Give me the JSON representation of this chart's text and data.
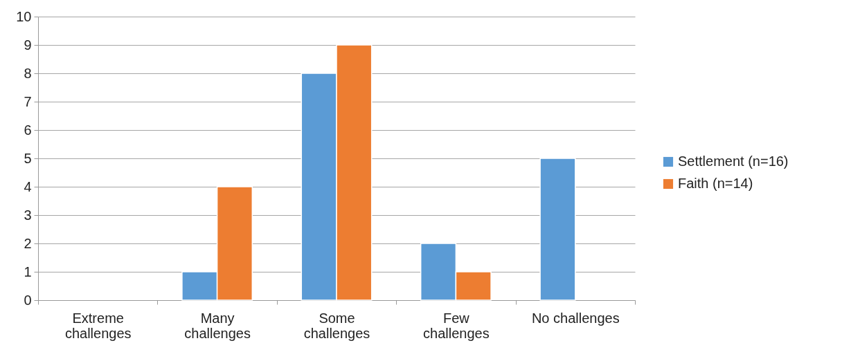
{
  "chart_data": {
    "type": "bar",
    "categories": [
      "Extreme challenges",
      "Many challenges",
      "Some challenges",
      "Few challenges",
      "No challenges"
    ],
    "series": [
      {
        "name": "Settlement (n=16)",
        "color": "#5b9bd5",
        "values": [
          0,
          1,
          8,
          2,
          5
        ]
      },
      {
        "name": "Faith (n=14)",
        "color": "#ed7d31",
        "values": [
          0,
          4,
          9,
          1,
          0
        ]
      }
    ],
    "ylim": [
      0,
      10
    ],
    "yticks": [
      0,
      1,
      2,
      3,
      4,
      5,
      6,
      7,
      8,
      9,
      10
    ],
    "grid": "y",
    "legend": "right"
  }
}
